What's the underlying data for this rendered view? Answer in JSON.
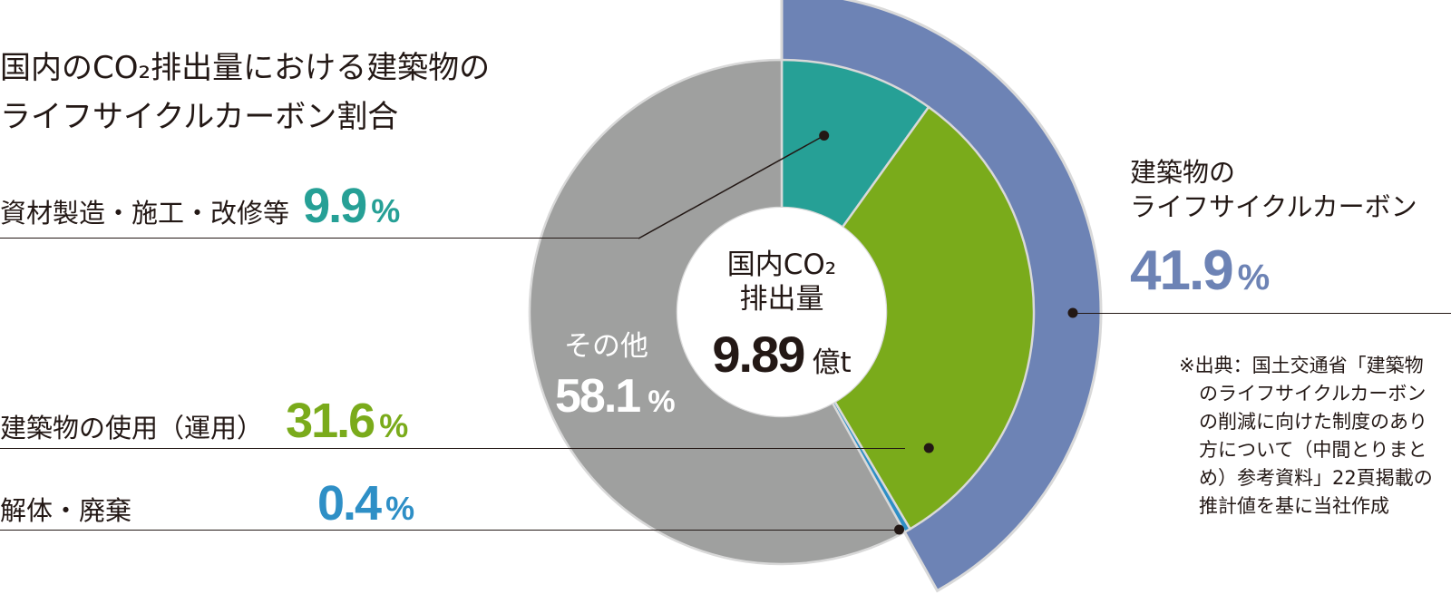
{
  "title": {
    "line1": "国内のCO₂排出量における建築物の",
    "line2": "ライフサイクルカーボン割合"
  },
  "chart_data": {
    "type": "pie",
    "center": {
      "line1": "国内CO₂",
      "line2": "排出量",
      "value": "9.89",
      "unit": "億t"
    },
    "inner_slices": [
      {
        "label": "資材製造・施工・改修等",
        "value": 9.9,
        "value_text": "9.9",
        "color": "#26a096"
      },
      {
        "label": "建築物の使用（運用）",
        "value": 31.6,
        "value_text": "31.6",
        "color": "#7aab1b"
      },
      {
        "label": "解体・廃棄",
        "value": 0.4,
        "value_text": "0.4",
        "color": "#2e8fc6"
      },
      {
        "label": "その他",
        "value": 58.1,
        "value_text": "58.1",
        "color": "#9fa09f"
      }
    ],
    "outer_band": {
      "label_line1": "建築物の",
      "label_line2": "ライフサイクルカーボン",
      "value": 41.9,
      "value_text": "41.9",
      "color": "#6d83b5"
    },
    "percent_sign": "%"
  },
  "note": {
    "lines": [
      "※出典：国土交通省「建築物",
      "のライフサイクルカーボン",
      "の削減に向けた制度のあり",
      "方について（中間とりまと",
      "め）参考資料」22頁掲載の",
      "推計値を基に当社作成"
    ]
  }
}
